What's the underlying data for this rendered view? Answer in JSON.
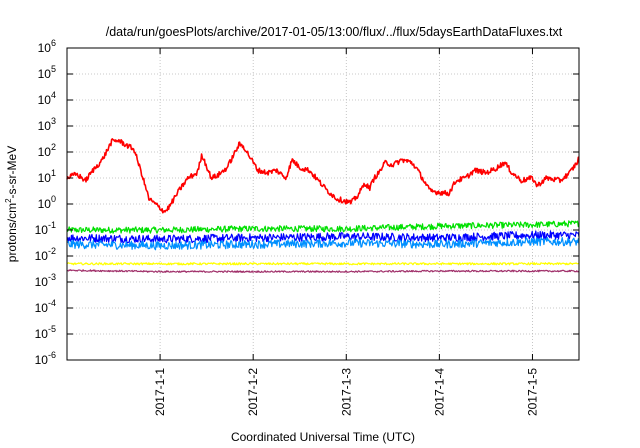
{
  "chart_data": {
    "type": "line",
    "title": "/data/run/goesPlots/archive/2017-01-05/13:00/flux/../flux/5daysEarthDataFluxes.txt",
    "xlabel": "Coordinated Universal Time (UTC)",
    "ylabel_main": "protons/cm",
    "ylabel_sup": "2",
    "ylabel_tail": "-s-sr-MeV",
    "y_scale": "log",
    "ylim": [
      -6,
      6
    ],
    "y_tick_exponents": [
      -6,
      -5,
      -4,
      -3,
      -2,
      -1,
      0,
      1,
      2,
      3,
      4,
      5,
      6
    ],
    "y_tick_base": "10",
    "xlim": [
      0,
      5.5
    ],
    "x_ticks": [
      {
        "x": 1,
        "label": "2017-1-1"
      },
      {
        "x": 2,
        "label": "2017-1-2"
      },
      {
        "x": 3,
        "label": "2017-1-3"
      },
      {
        "x": 4,
        "label": "2017-1-4"
      },
      {
        "x": 5,
        "label": "2017-1-5"
      }
    ],
    "grid": true,
    "series": [
      {
        "color": "#ff0000",
        "noise": 0.1,
        "points": [
          [
            0,
            1.0
          ],
          [
            0.1,
            1.15
          ],
          [
            0.2,
            0.9
          ],
          [
            0.28,
            1.3
          ],
          [
            0.38,
            1.7
          ],
          [
            0.48,
            2.4
          ],
          [
            0.55,
            2.45
          ],
          [
            0.62,
            2.3
          ],
          [
            0.72,
            2.1
          ],
          [
            0.8,
            1.2
          ],
          [
            0.88,
            0.2
          ],
          [
            1.0,
            -0.15
          ],
          [
            1.05,
            -0.3
          ],
          [
            1.1,
            -0.1
          ],
          [
            1.2,
            0.5
          ],
          [
            1.3,
            1.0
          ],
          [
            1.4,
            1.2
          ],
          [
            1.45,
            1.9
          ],
          [
            1.55,
            1.0
          ],
          [
            1.62,
            1.1
          ],
          [
            1.72,
            1.4
          ],
          [
            1.8,
            1.95
          ],
          [
            1.85,
            2.3
          ],
          [
            1.9,
            2.2
          ],
          [
            2.0,
            1.6
          ],
          [
            2.05,
            1.3
          ],
          [
            2.15,
            1.2
          ],
          [
            2.25,
            1.3
          ],
          [
            2.35,
            1.0
          ],
          [
            2.42,
            1.7
          ],
          [
            2.5,
            1.4
          ],
          [
            2.6,
            1.3
          ],
          [
            2.7,
            0.9
          ],
          [
            2.8,
            0.5
          ],
          [
            2.9,
            0.2
          ],
          [
            3.0,
            0.1
          ],
          [
            3.05,
            0.05
          ],
          [
            3.12,
            0.3
          ],
          [
            3.2,
            0.8
          ],
          [
            3.25,
            0.6
          ],
          [
            3.3,
            1.0
          ],
          [
            3.35,
            1.2
          ],
          [
            3.42,
            1.6
          ],
          [
            3.5,
            1.5
          ],
          [
            3.6,
            1.7
          ],
          [
            3.7,
            1.6
          ],
          [
            3.75,
            1.4
          ],
          [
            3.8,
            1.1
          ],
          [
            3.9,
            0.5
          ],
          [
            4.0,
            0.45
          ],
          [
            4.1,
            0.4
          ],
          [
            4.18,
            0.9
          ],
          [
            4.28,
            1.0
          ],
          [
            4.38,
            1.3
          ],
          [
            4.5,
            1.2
          ],
          [
            4.6,
            1.35
          ],
          [
            4.7,
            1.6
          ],
          [
            4.78,
            1.2
          ],
          [
            4.88,
            0.9
          ],
          [
            5.0,
            1.0
          ],
          [
            5.05,
            0.7
          ],
          [
            5.15,
            1.0
          ],
          [
            5.3,
            0.9
          ],
          [
            5.4,
            1.2
          ],
          [
            5.48,
            1.6
          ],
          [
            5.5,
            1.8
          ]
        ]
      },
      {
        "color": "#00e000",
        "noise": 0.12,
        "points": [
          [
            0,
            -1.0
          ],
          [
            1.0,
            -1.0
          ],
          [
            2.0,
            -0.95
          ],
          [
            3.0,
            -0.95
          ],
          [
            4.0,
            -0.85
          ],
          [
            5.0,
            -0.8
          ],
          [
            5.5,
            -0.75
          ]
        ]
      },
      {
        "color": "#0000ff",
        "noise": 0.16,
        "points": [
          [
            0,
            -1.3
          ],
          [
            1.0,
            -1.35
          ],
          [
            2.0,
            -1.3
          ],
          [
            3.0,
            -1.25
          ],
          [
            4.0,
            -1.3
          ],
          [
            5.0,
            -1.2
          ],
          [
            5.5,
            -1.2
          ]
        ]
      },
      {
        "color": "#0090ff",
        "noise": 0.16,
        "points": [
          [
            0,
            -1.55
          ],
          [
            1.0,
            -1.6
          ],
          [
            2.0,
            -1.55
          ],
          [
            3.0,
            -1.5
          ],
          [
            4.0,
            -1.55
          ],
          [
            5.0,
            -1.45
          ],
          [
            5.5,
            -1.45
          ]
        ]
      },
      {
        "color": "#ffff00",
        "noise": 0.04,
        "points": [
          [
            0,
            -2.3
          ],
          [
            1.0,
            -2.3
          ],
          [
            2.0,
            -2.3
          ],
          [
            3.0,
            -2.3
          ],
          [
            4.0,
            -2.3
          ],
          [
            5.0,
            -2.3
          ],
          [
            5.5,
            -2.3
          ]
        ]
      },
      {
        "color": "#a0306a",
        "noise": 0.03,
        "points": [
          [
            0,
            -2.55
          ],
          [
            1.0,
            -2.6
          ],
          [
            2.0,
            -2.6
          ],
          [
            3.0,
            -2.6
          ],
          [
            4.0,
            -2.58
          ],
          [
            5.0,
            -2.58
          ],
          [
            5.5,
            -2.58
          ]
        ]
      }
    ]
  }
}
